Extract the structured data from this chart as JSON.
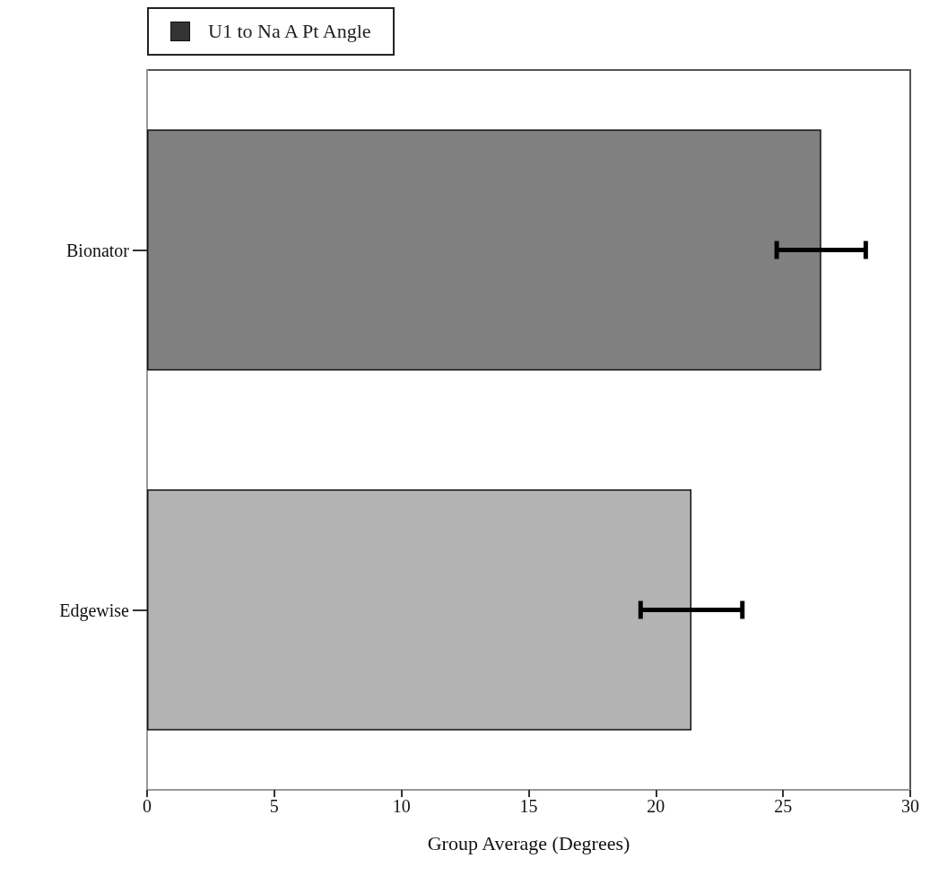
{
  "chart_data": {
    "type": "bar",
    "orientation": "horizontal",
    "xlabel": "Group Average (Degrees)",
    "categories": [
      "Bionator",
      "Edgewise"
    ],
    "series": [
      {
        "name": "U1 to Na A Pt Angle",
        "color": "#333333",
        "colors": [
          "#808080",
          "#b3b3b3"
        ],
        "values": [
          26.5,
          21.4
        ],
        "errors": [
          1.75,
          2.0
        ]
      }
    ],
    "xlim": [
      0,
      30
    ],
    "xticks": [
      0,
      5,
      10,
      15,
      20,
      25,
      30
    ],
    "grid": false,
    "legend": "top left"
  }
}
